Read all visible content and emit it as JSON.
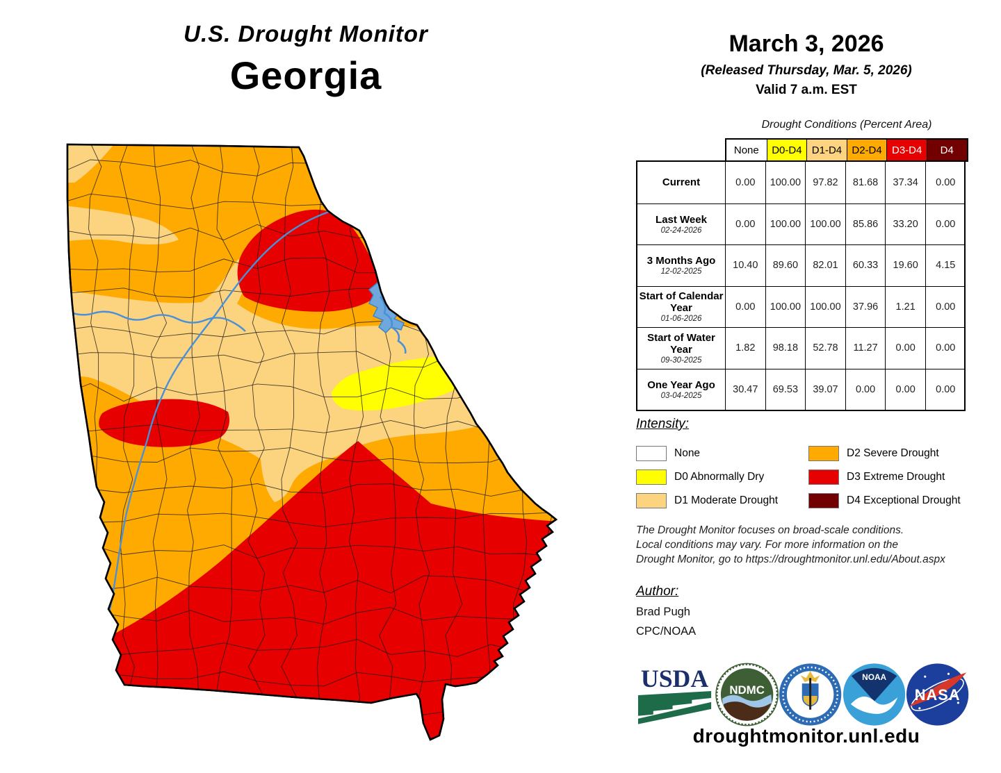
{
  "title": {
    "line1": "U.S. Drought Monitor",
    "line2": "Georgia"
  },
  "date_block": {
    "date": "March 3, 2026",
    "released": "(Released Thursday, Mar. 5, 2026)",
    "valid": "Valid 7 a.m. EST"
  },
  "table": {
    "caption": "Drought Conditions (Percent Area)",
    "columns": [
      "None",
      "D0-D4",
      "D1-D4",
      "D2-D4",
      "D3-D4",
      "D4"
    ],
    "rows": [
      {
        "label": "Current",
        "date": "",
        "values": [
          "0.00",
          "100.00",
          "97.82",
          "81.68",
          "37.34",
          "0.00"
        ]
      },
      {
        "label": "Last Week",
        "date": "02-24-2026",
        "values": [
          "0.00",
          "100.00",
          "100.00",
          "85.86",
          "33.20",
          "0.00"
        ]
      },
      {
        "label": "3 Months Ago",
        "date": "12-02-2025",
        "values": [
          "10.40",
          "89.60",
          "82.01",
          "60.33",
          "19.60",
          "4.15"
        ]
      },
      {
        "label": "Start of Calendar Year",
        "date": "01-06-2026",
        "values": [
          "0.00",
          "100.00",
          "100.00",
          "37.96",
          "1.21",
          "0.00"
        ]
      },
      {
        "label": "Start of Water Year",
        "date": "09-30-2025",
        "values": [
          "1.82",
          "98.18",
          "52.78",
          "11.27",
          "0.00",
          "0.00"
        ]
      },
      {
        "label": "One Year Ago",
        "date": "03-04-2025",
        "values": [
          "30.47",
          "69.53",
          "39.07",
          "0.00",
          "0.00",
          "0.00"
        ]
      }
    ]
  },
  "legend": {
    "heading": "Intensity:",
    "items": [
      {
        "label": "None",
        "color": "#FFFFFF"
      },
      {
        "label": "D0 Abnormally Dry",
        "color": "#FFFF00"
      },
      {
        "label": "D1 Moderate Drought",
        "color": "#FCD37F"
      },
      {
        "label": "D2 Severe Drought",
        "color": "#FFAA00"
      },
      {
        "label": "D3 Extreme Drought",
        "color": "#E60000"
      },
      {
        "label": "D4 Exceptional Drought",
        "color": "#730000"
      }
    ]
  },
  "disclaimer": {
    "line1": "The Drought Monitor focuses on broad-scale conditions.",
    "line2": "Local conditions may vary. For more information on the",
    "line3": "Drought Monitor, go to https://droughtmonitor.unl.edu/About.aspx"
  },
  "author": {
    "heading": "Author:",
    "name": "Brad Pugh",
    "org": "CPC/NOAA"
  },
  "logos": {
    "usda": "USDA",
    "ndmc": "NDMC",
    "noaa": "NOAA",
    "nasa": "NASA"
  },
  "footer": {
    "url": "droughtmonitor.unl.edu"
  },
  "colors": {
    "none": "#FFFFFF",
    "d0": "#FFFF00",
    "d1": "#FCD37F",
    "d2": "#FFAA00",
    "d3": "#E60000",
    "d4": "#730000",
    "river": "#4a90d9",
    "header_d3_text": "#FFFFFF"
  }
}
